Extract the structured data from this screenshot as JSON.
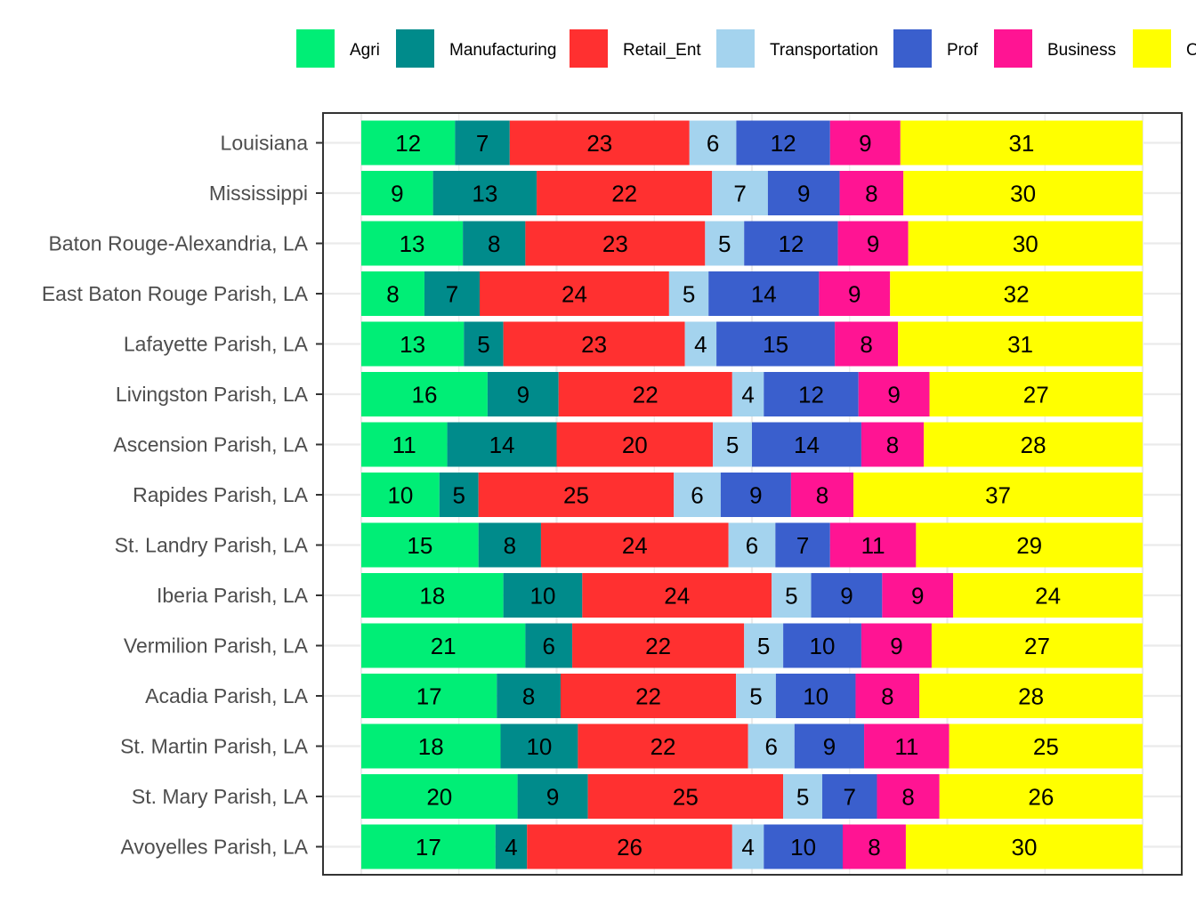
{
  "chart_data": {
    "type": "bar",
    "orientation": "horizontal",
    "stacked": "percent",
    "title": "",
    "xlabel": "",
    "ylabel": "",
    "xlim": [
      0,
      100
    ],
    "grid": true,
    "legend_position": "top",
    "categories": [
      "Louisiana",
      "Mississippi",
      "Baton Rouge-Alexandria, LA",
      "East Baton Rouge Parish, LA",
      "Lafayette Parish, LA",
      "Livingston Parish, LA",
      "Ascension Parish, LA",
      "Rapides Parish, LA",
      "St. Landry Parish, LA",
      "Iberia Parish, LA",
      "Vermilion Parish, LA",
      "Acadia Parish, LA",
      "St. Martin Parish, LA",
      "St. Mary Parish, LA",
      "Avoyelles Parish, LA"
    ],
    "series": [
      {
        "name": "Agri",
        "color": "#00EE76",
        "values": [
          12,
          9,
          13,
          8,
          13,
          16,
          11,
          10,
          15,
          18,
          21,
          17,
          18,
          20,
          17
        ]
      },
      {
        "name": "Manufacturing",
        "color": "#008B8B",
        "values": [
          7,
          13,
          8,
          7,
          5,
          9,
          14,
          5,
          8,
          10,
          6,
          8,
          10,
          9,
          4
        ]
      },
      {
        "name": "Retail_Ent",
        "color": "#FF3030",
        "values": [
          23,
          22,
          23,
          24,
          23,
          22,
          20,
          25,
          24,
          24,
          22,
          22,
          22,
          25,
          26
        ]
      },
      {
        "name": "Transportation",
        "color": "#A4D3EE",
        "values": [
          6,
          7,
          5,
          5,
          4,
          4,
          5,
          6,
          6,
          5,
          5,
          5,
          6,
          5,
          4
        ]
      },
      {
        "name": "Prof",
        "color": "#3A5FCD",
        "values": [
          12,
          9,
          12,
          14,
          15,
          12,
          14,
          9,
          7,
          9,
          10,
          10,
          9,
          7,
          10
        ]
      },
      {
        "name": "Business",
        "color": "#FF1493",
        "values": [
          9,
          8,
          9,
          9,
          8,
          9,
          8,
          8,
          11,
          9,
          9,
          8,
          11,
          8,
          8
        ]
      },
      {
        "name": "Other",
        "color": "#FFFF00",
        "values": [
          31,
          30,
          30,
          32,
          31,
          27,
          28,
          37,
          29,
          24,
          27,
          28,
          25,
          26,
          30
        ]
      }
    ]
  }
}
